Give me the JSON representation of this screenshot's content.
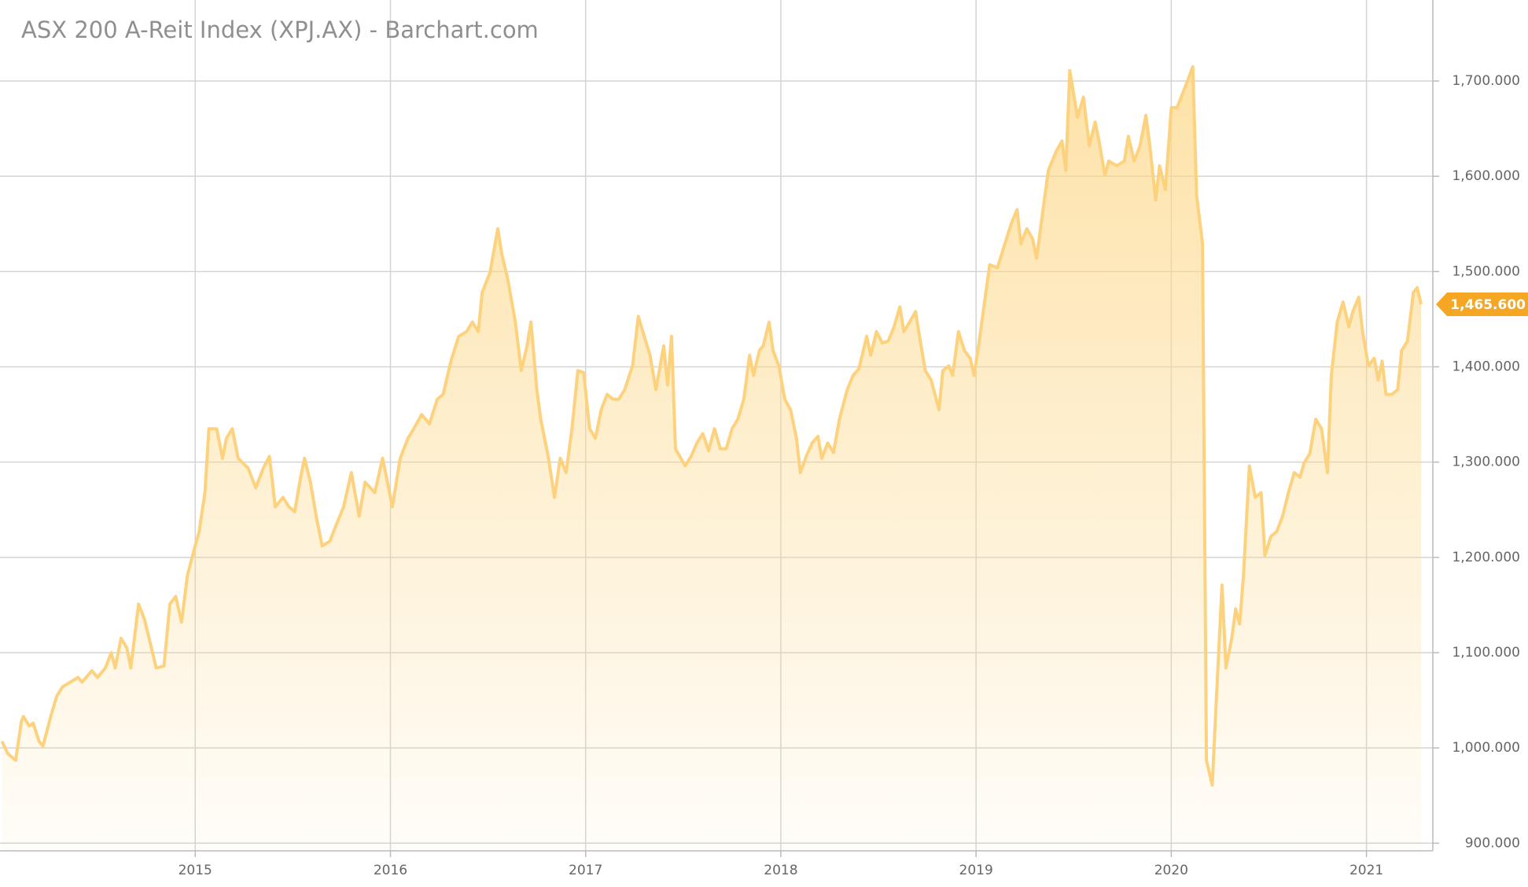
{
  "chart_data": {
    "type": "area",
    "title": "ASX 200 A-Reit Index (XPJ.AX) - Barchart.com",
    "color": "#fdd27e",
    "grid": true,
    "y_axis_side": "right",
    "xlim": [
      2014.0,
      2021.34
    ],
    "xticks": [
      2015,
      2016,
      2017,
      2018,
      2019,
      2020,
      2021
    ],
    "ylim": [
      892,
      1785
    ],
    "yticks": [
      {
        "value": 900,
        "label": "900.000"
      },
      {
        "value": 1000,
        "label": "1,000.000"
      },
      {
        "value": 1100,
        "label": "1,100.000"
      },
      {
        "value": 1200,
        "label": "1,200.000"
      },
      {
        "value": 1300,
        "label": "1,300.000"
      },
      {
        "value": 1400,
        "label": "1,400.000"
      },
      {
        "value": 1500,
        "label": "1,500.000"
      },
      {
        "value": 1600,
        "label": "1,600.000"
      },
      {
        "value": 1700,
        "label": "1,700.000"
      }
    ],
    "last_value": {
      "value": 1465.6,
      "label": "1,465.600"
    },
    "x": [
      2014.01,
      2014.04,
      2014.08,
      2014.11,
      2014.12,
      2014.15,
      2014.17,
      2014.2,
      2014.22,
      2014.26,
      2014.29,
      2014.32,
      2014.36,
      2014.4,
      2014.42,
      2014.47,
      2014.5,
      2014.54,
      2014.57,
      2014.59,
      2014.62,
      2014.65,
      2014.67,
      2014.71,
      2014.74,
      2014.77,
      2014.8,
      2014.84,
      2014.87,
      2014.9,
      2014.93,
      2014.96,
      2015.0,
      2015.02,
      2015.05,
      2015.07,
      2015.11,
      2015.14,
      2015.16,
      2015.19,
      2015.22,
      2015.27,
      2015.31,
      2015.35,
      2015.38,
      2015.41,
      2015.45,
      2015.48,
      2015.51,
      2015.54,
      2015.56,
      2015.59,
      2015.62,
      2015.65,
      2015.69,
      2015.72,
      2015.76,
      2015.8,
      2015.84,
      2015.87,
      2015.92,
      2015.96,
      2015.98,
      2016.01,
      2016.05,
      2016.09,
      2016.12,
      2016.16,
      2016.2,
      2016.24,
      2016.27,
      2016.31,
      2016.35,
      2016.39,
      2016.42,
      2016.45,
      2016.47,
      2016.51,
      2016.55,
      2016.57,
      2016.6,
      2016.64,
      2016.67,
      2016.7,
      2016.72,
      2016.75,
      2016.77,
      2016.81,
      2016.84,
      2016.87,
      2016.9,
      2016.93,
      2016.96,
      2016.99,
      2017.02,
      2017.05,
      2017.08,
      2017.11,
      2017.14,
      2017.17,
      2017.2,
      2017.24,
      2017.27,
      2017.3,
      2017.33,
      2017.36,
      2017.4,
      2017.42,
      2017.44,
      2017.46,
      2017.51,
      2017.54,
      2017.57,
      2017.6,
      2017.63,
      2017.66,
      2017.69,
      2017.72,
      2017.75,
      2017.78,
      2017.81,
      2017.84,
      2017.86,
      2017.89,
      2017.91,
      2017.94,
      2017.96,
      2017.99,
      2018.02,
      2018.05,
      2018.08,
      2018.1,
      2018.13,
      2018.16,
      2018.19,
      2018.21,
      2018.24,
      2018.27,
      2018.3,
      2018.34,
      2018.37,
      2018.4,
      2018.44,
      2018.46,
      2018.49,
      2018.52,
      2018.55,
      2018.58,
      2018.61,
      2018.63,
      2018.66,
      2018.69,
      2018.71,
      2018.74,
      2018.77,
      2018.81,
      2018.83,
      2018.86,
      2018.88,
      2018.91,
      2018.94,
      2018.97,
      2018.99,
      2019.02,
      2019.04,
      2019.07,
      2019.11,
      2019.14,
      2019.18,
      2019.21,
      2019.23,
      2019.26,
      2019.29,
      2019.31,
      2019.34,
      2019.37,
      2019.41,
      2019.44,
      2019.46,
      2019.48,
      2019.52,
      2019.55,
      2019.58,
      2019.61,
      2019.63,
      2019.66,
      2019.68,
      2019.72,
      2019.76,
      2019.78,
      2019.81,
      2019.84,
      2019.87,
      2019.89,
      2019.92,
      2019.94,
      2019.97,
      2020.0,
      2020.03,
      2020.07,
      2020.11,
      2020.13,
      2020.16,
      2020.18,
      2020.21,
      2020.23,
      2020.26,
      2020.28,
      2020.31,
      2020.33,
      2020.35,
      2020.37,
      2020.4,
      2020.43,
      2020.46,
      2020.48,
      2020.51,
      2020.54,
      2020.57,
      2020.6,
      2020.63,
      2020.66,
      2020.68,
      2020.71,
      2020.74,
      2020.77,
      2020.8,
      2020.82,
      2020.85,
      2020.88,
      2020.91,
      2020.93,
      2020.96,
      2020.98,
      2021.01,
      2021.04,
      2021.06,
      2021.08,
      2021.1,
      2021.13,
      2021.16,
      2021.18,
      2021.21,
      2021.24,
      2021.26,
      2021.28
    ],
    "values": [
      1007,
      994,
      987,
      1028,
      1033,
      1023,
      1026,
      1007,
      1002,
      1033,
      1054,
      1064,
      1069,
      1074,
      1069,
      1081,
      1074,
      1084,
      1100,
      1084,
      1115,
      1105,
      1084,
      1151,
      1135,
      1110,
      1084,
      1086,
      1151,
      1159,
      1132,
      1181,
      1212,
      1227,
      1268,
      1335,
      1335,
      1304,
      1325,
      1335,
      1304,
      1294,
      1273,
      1294,
      1306,
      1253,
      1263,
      1253,
      1248,
      1284,
      1304,
      1279,
      1243,
      1212,
      1217,
      1233,
      1253,
      1289,
      1243,
      1279,
      1268,
      1304,
      1284,
      1253,
      1304,
      1325,
      1335,
      1350,
      1340,
      1366,
      1371,
      1406,
      1432,
      1437,
      1447,
      1437,
      1478,
      1499,
      1545,
      1519,
      1493,
      1447,
      1396,
      1422,
      1447,
      1376,
      1345,
      1304,
      1263,
      1304,
      1289,
      1335,
      1396,
      1394,
      1335,
      1325,
      1355,
      1371,
      1366,
      1366,
      1376,
      1401,
      1453,
      1432,
      1412,
      1376,
      1422,
      1381,
      1432,
      1314,
      1296,
      1306,
      1320,
      1330,
      1312,
      1335,
      1314,
      1314,
      1335,
      1345,
      1366,
      1412,
      1391,
      1417,
      1422,
      1447,
      1417,
      1401,
      1366,
      1355,
      1325,
      1289,
      1306,
      1320,
      1327,
      1304,
      1320,
      1310,
      1345,
      1376,
      1391,
      1398,
      1432,
      1412,
      1437,
      1425,
      1427,
      1442,
      1463,
      1437,
      1447,
      1458,
      1432,
      1396,
      1386,
      1355,
      1396,
      1401,
      1391,
      1437,
      1417,
      1409,
      1391,
      1432,
      1463,
      1507,
      1504,
      1524,
      1550,
      1565,
      1529,
      1545,
      1534,
      1514,
      1560,
      1606,
      1626,
      1637,
      1606,
      1711,
      1662,
      1683,
      1632,
      1657,
      1637,
      1601,
      1616,
      1611,
      1616,
      1642,
      1616,
      1632,
      1664,
      1632,
      1575,
      1611,
      1586,
      1672,
      1672,
      1693,
      1715,
      1580,
      1529,
      987,
      961,
      1048,
      1171,
      1084,
      1115,
      1146,
      1130,
      1181,
      1296,
      1263,
      1268,
      1202,
      1222,
      1227,
      1243,
      1268,
      1289,
      1284,
      1299,
      1309,
      1345,
      1335,
      1289,
      1391,
      1447,
      1468,
      1442,
      1458,
      1473,
      1437,
      1401,
      1409,
      1386,
      1406,
      1371,
      1371,
      1376,
      1417,
      1427,
      1478,
      1483,
      1465.6
    ]
  }
}
